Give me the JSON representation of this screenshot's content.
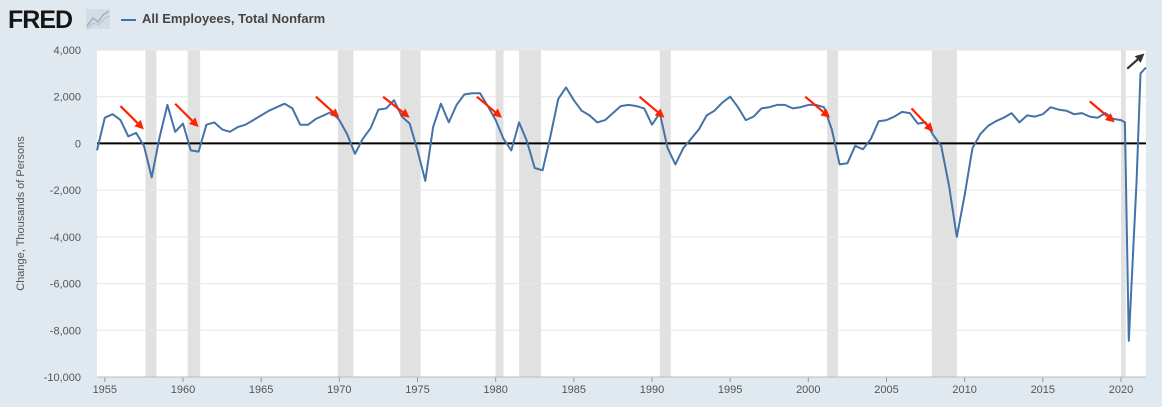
{
  "header": {
    "logo_text": "FRED",
    "logo_icon": "trend-chart-icon",
    "series_label": "All Employees, Total Nonfarm"
  },
  "colors": {
    "series": "#4572a7",
    "recession": "#e1e1e1",
    "zero_line": "#000000",
    "annotation_arrow_red": "#ff2200",
    "annotation_arrow_dark": "#333333"
  },
  "chart_data": {
    "type": "line",
    "ylabel": "Change, Thousands of Persons",
    "xlabel": "",
    "title": "",
    "ylim": [
      -10000,
      4000
    ],
    "xlim": [
      1954.5,
      2021.6
    ],
    "yticks": [
      4000,
      2000,
      0,
      -2000,
      -4000,
      -6000,
      -8000,
      -10000
    ],
    "ytick_labels": [
      "4,000",
      "2,000",
      "0",
      "-2,000",
      "-4,000",
      "-6,000",
      "-8,000",
      "-10,000"
    ],
    "xticks": [
      1955,
      1960,
      1965,
      1970,
      1975,
      1980,
      1985,
      1990,
      1995,
      2000,
      2005,
      2010,
      2015,
      2020
    ],
    "grid": "horizontal",
    "recessions": [
      [
        1957.6,
        1958.3
      ],
      [
        1960.3,
        1961.1
      ],
      [
        1969.9,
        1970.9
      ],
      [
        1973.9,
        1975.2
      ],
      [
        1980.0,
        1980.5
      ],
      [
        1981.5,
        1982.9
      ],
      [
        1990.5,
        1991.2
      ],
      [
        2001.2,
        2001.9
      ],
      [
        2007.9,
        2009.5
      ],
      [
        2020.0,
        2020.3
      ]
    ],
    "series": [
      {
        "name": "All Employees, Total Nonfarm",
        "points": [
          [
            1954.5,
            -300
          ],
          [
            1955.0,
            1100
          ],
          [
            1955.5,
            1250
          ],
          [
            1956.0,
            1000
          ],
          [
            1956.5,
            300
          ],
          [
            1957.0,
            450
          ],
          [
            1957.5,
            -100
          ],
          [
            1958.0,
            -1450
          ],
          [
            1958.5,
            250
          ],
          [
            1959.0,
            1650
          ],
          [
            1959.5,
            500
          ],
          [
            1960.0,
            850
          ],
          [
            1960.5,
            -300
          ],
          [
            1961.0,
            -350
          ],
          [
            1961.5,
            800
          ],
          [
            1962.0,
            900
          ],
          [
            1962.5,
            600
          ],
          [
            1963.0,
            500
          ],
          [
            1963.5,
            700
          ],
          [
            1964.0,
            800
          ],
          [
            1964.5,
            1000
          ],
          [
            1965.0,
            1200
          ],
          [
            1965.5,
            1400
          ],
          [
            1966.0,
            1550
          ],
          [
            1966.5,
            1700
          ],
          [
            1967.0,
            1500
          ],
          [
            1967.5,
            800
          ],
          [
            1968.0,
            800
          ],
          [
            1968.5,
            1050
          ],
          [
            1969.0,
            1200
          ],
          [
            1969.5,
            1350
          ],
          [
            1970.0,
            1000
          ],
          [
            1970.5,
            400
          ],
          [
            1971.0,
            -450
          ],
          [
            1971.5,
            200
          ],
          [
            1972.0,
            650
          ],
          [
            1972.5,
            1450
          ],
          [
            1973.0,
            1500
          ],
          [
            1973.5,
            1850
          ],
          [
            1974.0,
            1150
          ],
          [
            1974.5,
            850
          ],
          [
            1975.0,
            -300
          ],
          [
            1975.5,
            -1600
          ],
          [
            1976.0,
            700
          ],
          [
            1976.5,
            1700
          ],
          [
            1977.0,
            900
          ],
          [
            1977.5,
            1650
          ],
          [
            1978.0,
            2100
          ],
          [
            1978.5,
            2150
          ],
          [
            1979.0,
            2150
          ],
          [
            1979.5,
            1600
          ],
          [
            1980.0,
            1000
          ],
          [
            1980.5,
            200
          ],
          [
            1981.0,
            -300
          ],
          [
            1981.5,
            900
          ],
          [
            1982.0,
            100
          ],
          [
            1982.5,
            -1050
          ],
          [
            1983.0,
            -1150
          ],
          [
            1983.5,
            300
          ],
          [
            1984.0,
            1900
          ],
          [
            1984.5,
            2400
          ],
          [
            1985.0,
            1850
          ],
          [
            1985.5,
            1400
          ],
          [
            1986.0,
            1200
          ],
          [
            1986.5,
            900
          ],
          [
            1987.0,
            1000
          ],
          [
            1987.5,
            1300
          ],
          [
            1988.0,
            1600
          ],
          [
            1988.5,
            1650
          ],
          [
            1989.0,
            1600
          ],
          [
            1989.5,
            1500
          ],
          [
            1990.0,
            800
          ],
          [
            1990.5,
            1300
          ],
          [
            1991.0,
            -200
          ],
          [
            1991.5,
            -900
          ],
          [
            1992.0,
            -200
          ],
          [
            1992.5,
            200
          ],
          [
            1993.0,
            600
          ],
          [
            1993.5,
            1200
          ],
          [
            1994.0,
            1400
          ],
          [
            1994.5,
            1750
          ],
          [
            1995.0,
            2000
          ],
          [
            1995.5,
            1550
          ],
          [
            1996.0,
            1000
          ],
          [
            1996.5,
            1150
          ],
          [
            1997.0,
            1500
          ],
          [
            1997.5,
            1550
          ],
          [
            1998.0,
            1650
          ],
          [
            1998.5,
            1650
          ],
          [
            1999.0,
            1500
          ],
          [
            1999.5,
            1550
          ],
          [
            2000.0,
            1650
          ],
          [
            2000.5,
            1650
          ],
          [
            2001.0,
            1550
          ],
          [
            2001.5,
            600
          ],
          [
            2002.0,
            -900
          ],
          [
            2002.5,
            -850
          ],
          [
            2003.0,
            -100
          ],
          [
            2003.5,
            -250
          ],
          [
            2004.0,
            200
          ],
          [
            2004.5,
            950
          ],
          [
            2005.0,
            1000
          ],
          [
            2005.5,
            1150
          ],
          [
            2006.0,
            1350
          ],
          [
            2006.5,
            1300
          ],
          [
            2007.0,
            850
          ],
          [
            2007.5,
            900
          ],
          [
            2008.0,
            350
          ],
          [
            2008.5,
            -100
          ],
          [
            2009.0,
            -1800
          ],
          [
            2009.5,
            -4000
          ],
          [
            2010.0,
            -2200
          ],
          [
            2010.5,
            -200
          ],
          [
            2011.0,
            400
          ],
          [
            2011.5,
            750
          ],
          [
            2012.0,
            950
          ],
          [
            2012.5,
            1100
          ],
          [
            2013.0,
            1300
          ],
          [
            2013.5,
            900
          ],
          [
            2014.0,
            1200
          ],
          [
            2014.5,
            1150
          ],
          [
            2015.0,
            1250
          ],
          [
            2015.5,
            1550
          ],
          [
            2016.0,
            1450
          ],
          [
            2016.5,
            1400
          ],
          [
            2017.0,
            1250
          ],
          [
            2017.5,
            1300
          ],
          [
            2018.0,
            1150
          ],
          [
            2018.5,
            1100
          ],
          [
            2019.0,
            1300
          ],
          [
            2019.5,
            1050
          ],
          [
            2020.0,
            1000
          ],
          [
            2020.25,
            900
          ],
          [
            2020.5,
            -8450
          ],
          [
            2020.75,
            -5000
          ],
          [
            2021.0,
            -1600
          ],
          [
            2021.25,
            3000
          ],
          [
            2021.6,
            3250
          ]
        ]
      }
    ],
    "annotations": [
      {
        "type": "arrow",
        "color": "red",
        "from": [
          1956.0,
          1600
        ],
        "to": [
          1957.5,
          600
        ]
      },
      {
        "type": "arrow",
        "color": "red",
        "from": [
          1959.5,
          1700
        ],
        "to": [
          1961.0,
          700
        ]
      },
      {
        "type": "arrow",
        "color": "red",
        "from": [
          1968.5,
          2000
        ],
        "to": [
          1970.0,
          1100
        ]
      },
      {
        "type": "arrow",
        "color": "red",
        "from": [
          1972.8,
          2000
        ],
        "to": [
          1974.5,
          1100
        ]
      },
      {
        "type": "arrow",
        "color": "red",
        "from": [
          1978.8,
          2000
        ],
        "to": [
          1980.4,
          1100
        ]
      },
      {
        "type": "arrow",
        "color": "red",
        "from": [
          1989.2,
          2000
        ],
        "to": [
          1990.8,
          1100
        ]
      },
      {
        "type": "arrow",
        "color": "red",
        "from": [
          1999.8,
          2000
        ],
        "to": [
          2001.4,
          1100
        ]
      },
      {
        "type": "arrow",
        "color": "red",
        "from": [
          2006.6,
          1500
        ],
        "to": [
          2008.0,
          500
        ]
      },
      {
        "type": "arrow",
        "color": "red",
        "from": [
          2018.0,
          1800
        ],
        "to": [
          2019.6,
          900
        ]
      },
      {
        "type": "arrow",
        "color": "dark",
        "from": [
          2020.4,
          3200
        ],
        "to": [
          2021.5,
          3850
        ]
      }
    ]
  }
}
